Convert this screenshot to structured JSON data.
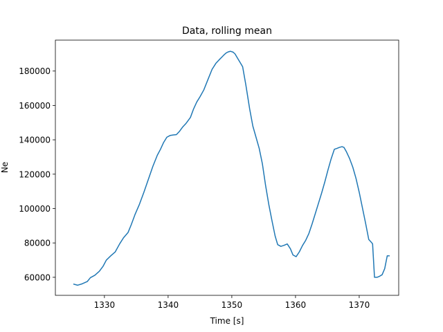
{
  "chart_data": {
    "type": "line",
    "title": "Data, rolling mean",
    "xlabel": "Time [s]",
    "ylabel": "Ne",
    "xlim": [
      1322.3,
      1376.2
    ],
    "ylim": [
      49500,
      198000
    ],
    "xticks": [
      1330,
      1340,
      1350,
      1360,
      1370
    ],
    "yticks": [
      60000,
      80000,
      100000,
      120000,
      140000,
      160000,
      180000
    ],
    "grid": false,
    "legend": "none",
    "series": [
      {
        "color": "#1f77b4",
        "x": [
          1325.2,
          1325.8,
          1326.5,
          1327.3,
          1327.8,
          1328.5,
          1329.2,
          1329.8,
          1330.3,
          1331.0,
          1331.7,
          1332.4,
          1333.0,
          1333.7,
          1334.2,
          1334.8,
          1335.5,
          1336.2,
          1336.9,
          1337.6,
          1338.3,
          1338.8,
          1339.3,
          1339.8,
          1340.3,
          1340.8,
          1341.3,
          1341.8,
          1342.3,
          1342.8,
          1343.5,
          1344.0,
          1344.5,
          1345.0,
          1345.6,
          1346.3,
          1346.9,
          1347.5,
          1348.0,
          1348.4,
          1348.8,
          1349.1,
          1349.4,
          1349.8,
          1350.2,
          1350.5,
          1350.9,
          1351.3,
          1351.7,
          1352.2,
          1352.8,
          1353.3,
          1353.8,
          1354.3,
          1354.8,
          1355.3,
          1355.8,
          1356.3,
          1356.8,
          1357.2,
          1357.7,
          1358.2,
          1358.7,
          1359.2,
          1359.6,
          1360.1,
          1360.6,
          1361.1,
          1361.6,
          1362.1,
          1362.6,
          1363.1,
          1363.6,
          1364.1,
          1364.6,
          1365.1,
          1365.6,
          1366.1,
          1366.5,
          1366.9,
          1367.3,
          1367.6,
          1368.0,
          1368.5,
          1369.0,
          1369.5,
          1370.0,
          1370.5,
          1371.0,
          1371.5,
          1371.8,
          1372.1,
          1372.4,
          1372.8,
          1373.2,
          1373.6,
          1374.0,
          1374.4,
          1374.7
        ],
        "y": [
          56000,
          55400,
          56200,
          57500,
          59800,
          61200,
          63500,
          66500,
          70000,
          72500,
          74800,
          79500,
          83000,
          86000,
          90500,
          96500,
          102500,
          109500,
          117000,
          124500,
          131000,
          134500,
          138500,
          141500,
          142500,
          142800,
          143000,
          145000,
          147500,
          149500,
          153000,
          158000,
          162000,
          165000,
          169000,
          175500,
          181000,
          184500,
          186500,
          188000,
          189500,
          190500,
          191100,
          191500,
          191000,
          190000,
          187500,
          185000,
          182500,
          172000,
          158000,
          148000,
          141500,
          135000,
          126000,
          113500,
          102500,
          93000,
          84000,
          79000,
          78000,
          78600,
          79400,
          76600,
          73000,
          72000,
          74800,
          78500,
          81500,
          85500,
          91000,
          97000,
          103000,
          109000,
          115500,
          122500,
          129000,
          134500,
          135000,
          135600,
          136000,
          135600,
          133000,
          129000,
          124000,
          117500,
          109500,
          100500,
          91500,
          82000,
          80800,
          79500,
          60000,
          60000,
          60600,
          61500,
          65000,
          72500,
          72500
        ]
      }
    ]
  }
}
